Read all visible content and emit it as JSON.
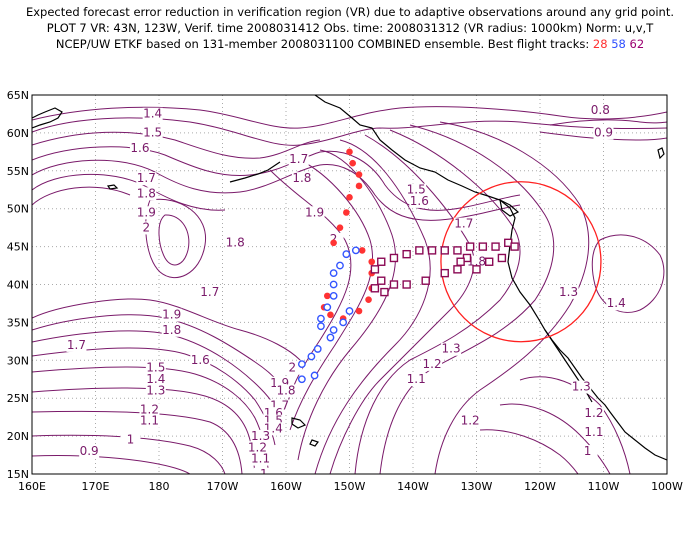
{
  "header": {
    "line1": "Expected forecast error reduction in verification region (VR) due to adaptive observations around any grid point.",
    "line2": "PLOT 7 VR: 43N, 123W, Verif. time 2008031412 Obs. time: 2008031312 (VR radius: 1000km) Norm: u,v,T",
    "line3_prefix": "NCEP/UW ETKF based on 131-member 2008031100 COMBINED ensemble.  Best flight tracks:",
    "track_red": "28",
    "track_blue": "58",
    "track_purple": "62"
  },
  "axes": {
    "x_labels": [
      "160E",
      "170E",
      "180",
      "170W",
      "160W",
      "150W",
      "140W",
      "130W",
      "120W",
      "110W",
      "100W"
    ],
    "y_labels": [
      "15N",
      "20N",
      "25N",
      "30N",
      "35N",
      "40N",
      "45N",
      "50N",
      "55N",
      "60N",
      "65N"
    ]
  },
  "contour_labels": [
    {
      "text": "1.4",
      "lon": 179,
      "lat": 62
    },
    {
      "text": "1.5",
      "lon": 179,
      "lat": 59.5
    },
    {
      "text": "1.6",
      "lon": 177,
      "lat": 57.5
    },
    {
      "text": "1.7",
      "lon": 178,
      "lat": 53.5
    },
    {
      "text": "1.8",
      "lon": 178,
      "lat": 51.5
    },
    {
      "text": "1.9",
      "lon": 178,
      "lat": 49
    },
    {
      "text": "2",
      "lon": 178,
      "lat": 47
    },
    {
      "text": "1.8",
      "lon": -168,
      "lat": 45
    },
    {
      "text": "1.7",
      "lon": -172,
      "lat": 38.5
    },
    {
      "text": "1.9",
      "lon": -178,
      "lat": 35.5
    },
    {
      "text": "1.8",
      "lon": -178,
      "lat": 33.5
    },
    {
      "text": "1.7",
      "lon": 167,
      "lat": 31.5
    },
    {
      "text": "1.6",
      "lon": -173.5,
      "lat": 29.5
    },
    {
      "text": "1.5",
      "lon": 179.5,
      "lat": 28.5
    },
    {
      "text": "1.4",
      "lon": 179.5,
      "lat": 27
    },
    {
      "text": "1.3",
      "lon": 179.5,
      "lat": 25.5
    },
    {
      "text": "1.2",
      "lon": 178.5,
      "lat": 23
    },
    {
      "text": "1.1",
      "lon": 178.5,
      "lat": 21.5
    },
    {
      "text": "1",
      "lon": 175.5,
      "lat": 19
    },
    {
      "text": "0.9",
      "lon": 169,
      "lat": 17.5
    },
    {
      "text": "1.7",
      "lon": -158,
      "lat": 56
    },
    {
      "text": "1.8",
      "lon": -157.5,
      "lat": 53.5
    },
    {
      "text": "1.9",
      "lon": -155.5,
      "lat": 49
    },
    {
      "text": "2",
      "lon": -152.5,
      "lat": 45.5
    },
    {
      "text": "2",
      "lon": -159,
      "lat": 28.5
    },
    {
      "text": "1.9",
      "lon": -161,
      "lat": 26.5
    },
    {
      "text": "1.8",
      "lon": -160,
      "lat": 25.5
    },
    {
      "text": "1.7",
      "lon": -161,
      "lat": 23.5
    },
    {
      "text": "1.6",
      "lon": -162,
      "lat": 22.5
    },
    {
      "text": "1.5",
      "lon": -162,
      "lat": 21.5
    },
    {
      "text": "1.4",
      "lon": -162,
      "lat": 20.5
    },
    {
      "text": "1.3",
      "lon": -164,
      "lat": 19.5
    },
    {
      "text": "1.2",
      "lon": -164.5,
      "lat": 18
    },
    {
      "text": "1.1",
      "lon": -164,
      "lat": 16.5
    },
    {
      "text": "1",
      "lon": -163.5,
      "lat": 14.5
    },
    {
      "text": "1.5",
      "lon": -139.5,
      "lat": 52
    },
    {
      "text": "1.6",
      "lon": -139,
      "lat": 50.5
    },
    {
      "text": "1.7",
      "lon": -132,
      "lat": 47.5
    },
    {
      "text": "1.8",
      "lon": -130,
      "lat": 42.5
    },
    {
      "text": "1.3",
      "lon": -134,
      "lat": 31
    },
    {
      "text": "1.2",
      "lon": -137,
      "lat": 29
    },
    {
      "text": "1.1",
      "lon": -139.5,
      "lat": 27
    },
    {
      "text": "1.2",
      "lon": -131,
      "lat": 21.5
    },
    {
      "text": "1.3",
      "lon": -115.5,
      "lat": 38.5
    },
    {
      "text": "1.4",
      "lon": -108,
      "lat": 37
    },
    {
      "text": "1.3",
      "lon": -113.5,
      "lat": 26
    },
    {
      "text": "1.2",
      "lon": -111.5,
      "lat": 22.5
    },
    {
      "text": "1.1",
      "lon": -111.5,
      "lat": 20
    },
    {
      "text": "1",
      "lon": -112.5,
      "lat": 17.5
    },
    {
      "text": "0.8",
      "lon": -110.5,
      "lat": 62.5
    },
    {
      "text": "0.9",
      "lon": -110,
      "lat": 59.5
    }
  ],
  "verification_region": {
    "lat": 43,
    "lon": -123,
    "radius_km": 1000
  },
  "flight_tracks": {
    "red": {
      "color": "#ff3333",
      "points": [
        [
          -150.0,
          57.5
        ],
        [
          -149.5,
          56.0
        ],
        [
          -148.5,
          54.5
        ],
        [
          -148.5,
          53.0
        ],
        [
          -150.0,
          51.5
        ],
        [
          -150.5,
          49.5
        ],
        [
          -151.5,
          47.5
        ],
        [
          -152.5,
          45.5
        ],
        [
          -148.0,
          44.5
        ],
        [
          -146.5,
          43.0
        ],
        [
          -146.5,
          41.5
        ],
        [
          -146.5,
          39.5
        ],
        [
          -147.0,
          38.0
        ],
        [
          -148.5,
          36.5
        ],
        [
          -151.0,
          35.5
        ],
        [
          -153.0,
          36.0
        ],
        [
          -154.0,
          37.0
        ],
        [
          -153.5,
          38.5
        ]
      ]
    },
    "blue": {
      "color": "#3355ff",
      "points": [
        [
          -149.0,
          44.5
        ],
        [
          -150.5,
          44.0
        ],
        [
          -151.5,
          42.5
        ],
        [
          -152.5,
          41.5
        ],
        [
          -152.5,
          40.0
        ],
        [
          -152.5,
          38.5
        ],
        [
          -153.5,
          37.0
        ],
        [
          -154.5,
          35.5
        ],
        [
          -154.5,
          34.5
        ],
        [
          -152.5,
          34.0
        ],
        [
          -151.0,
          35.0
        ],
        [
          -150.0,
          36.5
        ],
        [
          -153.0,
          33.0
        ],
        [
          -155.0,
          31.5
        ],
        [
          -156.0,
          30.5
        ],
        [
          -157.5,
          29.5
        ],
        [
          -155.5,
          28.0
        ],
        [
          -157.5,
          27.5
        ]
      ]
    },
    "purple": {
      "color": "#8b0a55",
      "points": [
        [
          -131.0,
          45.0
        ],
        [
          -129.0,
          45.0
        ],
        [
          -127.0,
          45.0
        ],
        [
          -125.0,
          45.5
        ],
        [
          -124.0,
          45.0
        ],
        [
          -126.0,
          43.5
        ],
        [
          -128.0,
          43.0
        ],
        [
          -130.0,
          42.0
        ],
        [
          -131.5,
          43.5
        ],
        [
          -132.5,
          43.0
        ],
        [
          -133.0,
          44.5
        ],
        [
          -135.0,
          44.5
        ],
        [
          -137.0,
          44.5
        ],
        [
          -139.0,
          44.5
        ],
        [
          -141.0,
          44.0
        ],
        [
          -143.0,
          43.5
        ],
        [
          -145.0,
          43.0
        ],
        [
          -146.0,
          42.0
        ],
        [
          -145.0,
          40.5
        ],
        [
          -146.0,
          39.5
        ],
        [
          -144.5,
          39.0
        ],
        [
          -143.0,
          40.0
        ],
        [
          -141.0,
          40.0
        ],
        [
          -138.0,
          40.5
        ],
        [
          -135.0,
          41.5
        ],
        [
          -133.0,
          42.0
        ]
      ]
    }
  }
}
